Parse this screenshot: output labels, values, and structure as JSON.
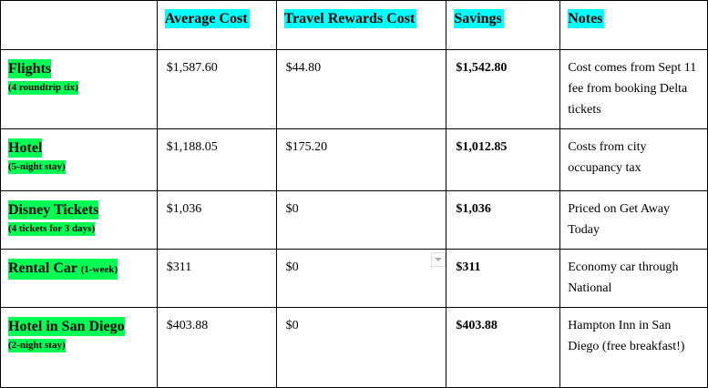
{
  "headers": [
    "",
    "Average Cost",
    "Travel Rewards Cost",
    "Savings",
    "Notes"
  ],
  "rows": [
    {
      "name": "Flights",
      "sub": "(4 roundtrip tix)",
      "sub_inline": false,
      "avg": "$1,587.60",
      "rewards": "$44.80",
      "savings": "$1,542.80",
      "notes": "Cost comes from Sept 11 fee from booking Delta tickets"
    },
    {
      "name": "Hotel",
      "sub": "(5-night stay)",
      "sub_inline": false,
      "avg": "$1,188.05",
      "rewards": "$175.20",
      "savings": "$1,012.85",
      "notes": "Costs from city occupancy tax"
    },
    {
      "name": "Disney Tickets",
      "sub": "(4 tickets for 3 days)",
      "sub_inline": false,
      "avg": "$1,036",
      "rewards": "$0",
      "savings": "$1,036",
      "notes": "Priced on Get Away Today"
    },
    {
      "name": "Rental Car",
      "sub": "(1-week)",
      "sub_inline": true,
      "avg": "$311",
      "rewards": "$0",
      "savings": "$311",
      "notes": "Economy car through National"
    },
    {
      "name": "Hotel in San Diego",
      "sub": "(2-night stay)",
      "sub_inline": false,
      "avg": "$403.88",
      "rewards": "$0",
      "savings": "$403.88",
      "notes": "Hampton Inn in San Diego (free breakfast!)"
    }
  ],
  "colors": {
    "header_highlight": "#00ffff",
    "category_highlight": "#00ff55"
  }
}
